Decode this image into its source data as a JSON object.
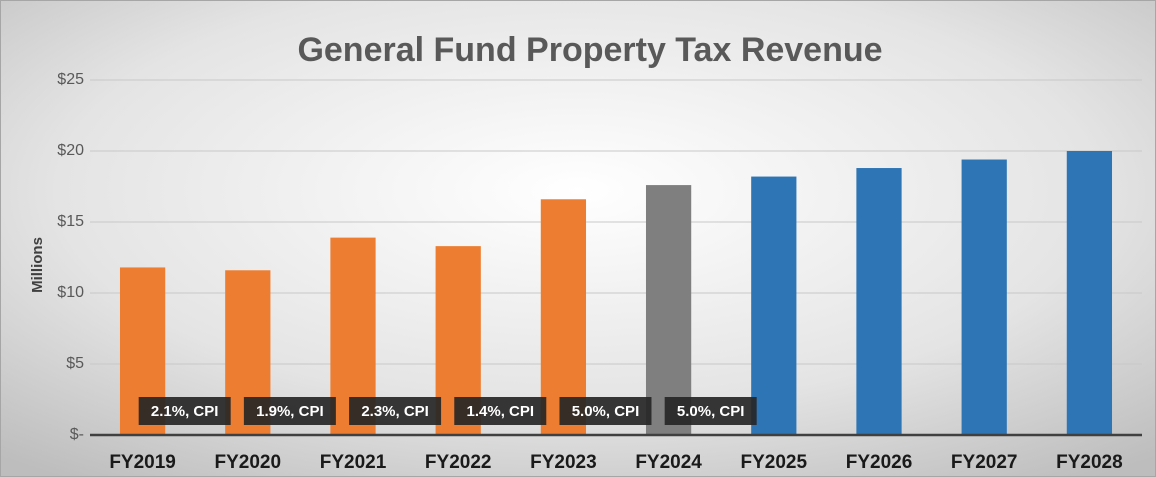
{
  "chart_data": {
    "type": "bar",
    "title": "General Fund Property Tax Revenue",
    "y_label": "Millions",
    "categories": [
      "FY2019",
      "FY2020",
      "FY2021",
      "FY2022",
      "FY2023",
      "FY2024",
      "FY2025",
      "FY2026",
      "FY2027",
      "FY2028"
    ],
    "values": [
      11.8,
      11.6,
      13.9,
      13.3,
      16.6,
      17.6,
      18.2,
      18.8,
      19.4,
      20.0
    ],
    "colors": [
      "#ed7d31",
      "#ed7d31",
      "#ed7d31",
      "#ed7d31",
      "#ed7d31",
      "#7f7f7f",
      "#2e75b6",
      "#2e75b6",
      "#2e75b6",
      "#2e75b6"
    ],
    "annotations": [
      "2.1%, CPI",
      "1.9%, CPI",
      "2.3%, CPI",
      "1.4%, CPI",
      "5.0%, CPI",
      "5.0%, CPI"
    ],
    "ylim": [
      0,
      25
    ],
    "yticks": [
      {
        "value": 0,
        "label": "$-"
      },
      {
        "value": 5,
        "label": "$5"
      },
      {
        "value": 10,
        "label": "$10"
      },
      {
        "value": 15,
        "label": "$15"
      },
      {
        "value": 20,
        "label": "$20"
      },
      {
        "value": 25,
        "label": "$25"
      }
    ],
    "grid": true
  }
}
